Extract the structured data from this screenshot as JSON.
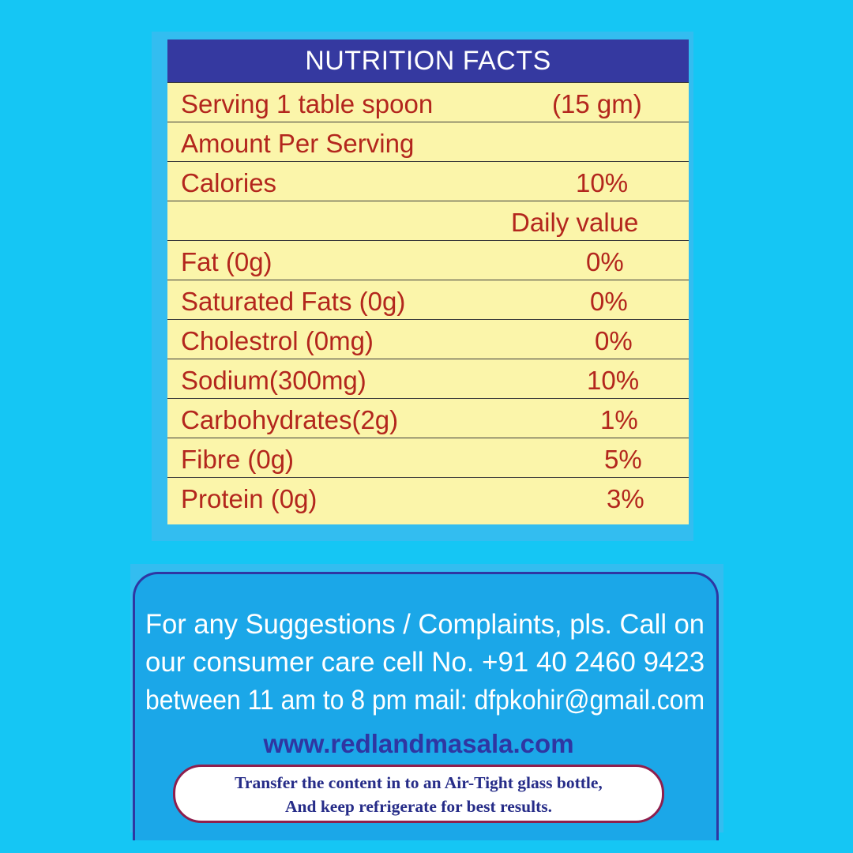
{
  "nutrition": {
    "title": "NUTRITION FACTS",
    "rows": [
      {
        "label": "Serving 1 table spoon",
        "value": "(15 gm)"
      },
      {
        "label": "Amount Per Serving",
        "value": ""
      },
      {
        "label": "Calories",
        "value": "10%"
      },
      {
        "label": "",
        "value": "Daily value"
      },
      {
        "label": "Fat (0g)",
        "value": "0%"
      },
      {
        "label": "Saturated Fats (0g)",
        "value": "0%"
      },
      {
        "label": "Cholestrol (0mg)",
        "value": "0%"
      },
      {
        "label": "Sodium(300mg)",
        "value": "10%"
      },
      {
        "label": "Carbohydrates(2g)",
        "value": "1%"
      },
      {
        "label": "Fibre (0g)",
        "value": "5%"
      },
      {
        "label": "Protein (0g)",
        "value": "3%"
      }
    ]
  },
  "contact": {
    "lines": [
      "For any Suggestions / Complaints, pls. Call on",
      "our consumer care cell No. +91 40 2460 9423",
      "between 11 am to 8 pm mail: dfpkohir@gmail.com"
    ],
    "website": "www.redlandmasala.com",
    "note_lines": [
      "Transfer the content in to an Air-Tight glass bottle,",
      "And keep refrigerate for best results."
    ]
  },
  "colors": {
    "background": "#15c6f4",
    "header": "#3539a0",
    "table_fill": "#fbf5aa",
    "text_red": "#b3261d",
    "navy": "#2f36a2"
  }
}
